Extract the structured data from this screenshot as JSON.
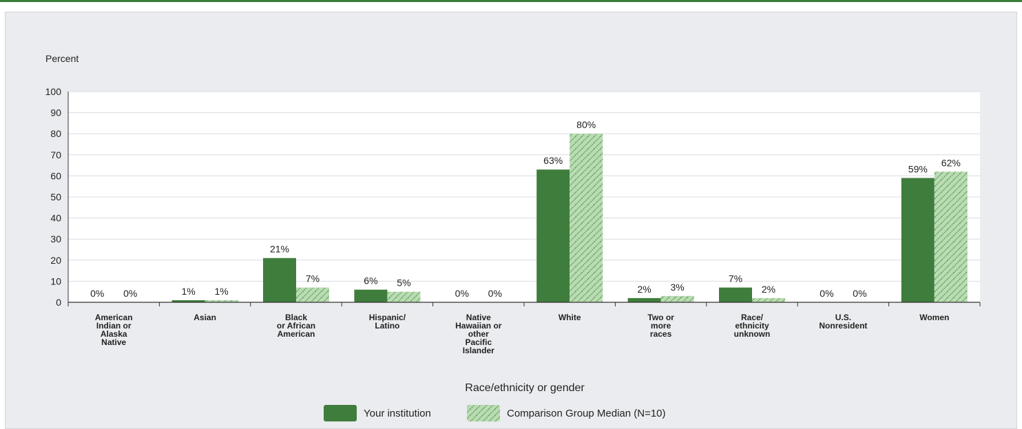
{
  "chart_data": {
    "type": "bar",
    "title": "",
    "ylabel": "Percent",
    "xlabel": "Race/ethnicity or gender",
    "ylim": [
      0,
      100
    ],
    "yticks": [
      0,
      10,
      20,
      30,
      40,
      50,
      60,
      70,
      80,
      90,
      100
    ],
    "grid": true,
    "legend_position": "bottom",
    "categories": [
      [
        "American",
        "Indian or",
        "Alaska",
        "Native"
      ],
      [
        "Asian"
      ],
      [
        "Black",
        "or African",
        "American"
      ],
      [
        "Hispanic/",
        "Latino"
      ],
      [
        "Native",
        "Hawaiian or",
        "other",
        "Pacific",
        "Islander"
      ],
      [
        "White"
      ],
      [
        "Two or",
        "more",
        "races"
      ],
      [
        "Race/",
        "ethnicity",
        "unknown"
      ],
      [
        "U.S.",
        "Nonresident"
      ],
      [
        "Women"
      ]
    ],
    "series": [
      {
        "name": "Your institution",
        "color": "#3f7d3c",
        "values": [
          0,
          1,
          21,
          6,
          0,
          63,
          2,
          7,
          0,
          59
        ],
        "labels": [
          "0%",
          "1%",
          "21%",
          "6%",
          "0%",
          "63%",
          "2%",
          "7%",
          "0%",
          "59%"
        ]
      },
      {
        "name": "Comparison Group Median (N=10)",
        "color": "#b9ddb2",
        "pattern": "hatched",
        "values": [
          0,
          1,
          7,
          5,
          0,
          80,
          3,
          2,
          0,
          62
        ],
        "labels": [
          "0%",
          "1%",
          "7%",
          "5%",
          "0%",
          "80%",
          "3%",
          "2%",
          "0%",
          "62%"
        ]
      }
    ]
  }
}
